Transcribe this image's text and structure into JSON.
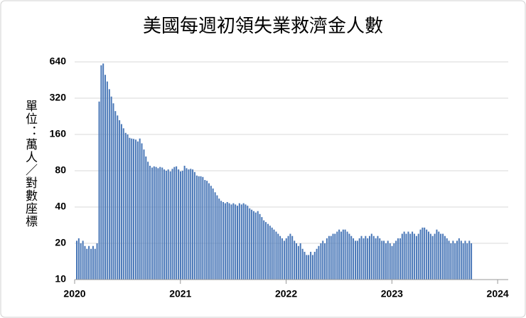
{
  "chart_data": {
    "type": "bar",
    "title": "美國每週初領失業救濟金人數",
    "y_label": "單位：萬人／對數座標",
    "color": "#4a78b8",
    "log_scale": true,
    "grid": true,
    "xlim": [
      2020,
      2024.1
    ],
    "xticks": [
      2020,
      2021,
      2022,
      2023,
      2024
    ],
    "ylim": [
      10,
      640
    ],
    "yticks": [
      10,
      20,
      40,
      80,
      160,
      320,
      640
    ],
    "x": [
      2020.0,
      2020.019,
      2020.038,
      2020.058,
      2020.077,
      2020.096,
      2020.115,
      2020.135,
      2020.154,
      2020.173,
      2020.192,
      2020.212,
      2020.231,
      2020.25,
      2020.269,
      2020.288,
      2020.308,
      2020.327,
      2020.346,
      2020.365,
      2020.385,
      2020.404,
      2020.423,
      2020.442,
      2020.462,
      2020.481,
      2020.5,
      2020.519,
      2020.538,
      2020.558,
      2020.577,
      2020.596,
      2020.615,
      2020.635,
      2020.654,
      2020.673,
      2020.692,
      2020.712,
      2020.731,
      2020.75,
      2020.769,
      2020.788,
      2020.808,
      2020.827,
      2020.846,
      2020.865,
      2020.885,
      2020.904,
      2020.923,
      2020.942,
      2020.962,
      2020.981,
      2021.0,
      2021.019,
      2021.038,
      2021.058,
      2021.077,
      2021.096,
      2021.115,
      2021.135,
      2021.154,
      2021.173,
      2021.192,
      2021.212,
      2021.231,
      2021.25,
      2021.269,
      2021.288,
      2021.308,
      2021.327,
      2021.346,
      2021.365,
      2021.385,
      2021.404,
      2021.423,
      2021.442,
      2021.462,
      2021.481,
      2021.5,
      2021.519,
      2021.538,
      2021.558,
      2021.577,
      2021.596,
      2021.615,
      2021.635,
      2021.654,
      2021.673,
      2021.692,
      2021.712,
      2021.731,
      2021.75,
      2021.769,
      2021.788,
      2021.808,
      2021.827,
      2021.846,
      2021.865,
      2021.885,
      2021.904,
      2021.923,
      2021.942,
      2021.962,
      2021.981,
      2022.0,
      2022.019,
      2022.038,
      2022.058,
      2022.077,
      2022.096,
      2022.115,
      2022.135,
      2022.154,
      2022.173,
      2022.192,
      2022.212,
      2022.231,
      2022.25,
      2022.269,
      2022.288,
      2022.308,
      2022.327,
      2022.346,
      2022.365,
      2022.385,
      2022.404,
      2022.423,
      2022.442,
      2022.462,
      2022.481,
      2022.5,
      2022.519,
      2022.538,
      2022.558,
      2022.577,
      2022.596,
      2022.615,
      2022.635,
      2022.654,
      2022.673,
      2022.692,
      2022.712,
      2022.731,
      2022.75,
      2022.769,
      2022.788,
      2022.808,
      2022.827,
      2022.846,
      2022.865,
      2022.885,
      2022.904,
      2022.923,
      2022.942,
      2022.962,
      2022.981,
      2023.0,
      2023.019,
      2023.038,
      2023.058,
      2023.077,
      2023.096,
      2023.115,
      2023.135,
      2023.154,
      2023.173,
      2023.192,
      2023.212,
      2023.231,
      2023.25,
      2023.269,
      2023.288,
      2023.308,
      2023.327,
      2023.346,
      2023.365,
      2023.385,
      2023.404,
      2023.423,
      2023.442,
      2023.462,
      2023.481,
      2023.5,
      2023.519,
      2023.538,
      2023.558,
      2023.577,
      2023.596,
      2023.615,
      2023.635,
      2023.654,
      2023.673,
      2023.692,
      2023.712,
      2023.731
    ],
    "values": [
      21,
      22,
      20,
      21,
      19,
      18,
      19,
      18,
      19,
      18,
      20,
      300,
      600,
      620,
      500,
      440,
      380,
      330,
      290,
      250,
      230,
      210,
      195,
      180,
      165,
      160,
      150,
      148,
      147,
      145,
      140,
      148,
      135,
      120,
      105,
      95,
      88,
      85,
      87,
      86,
      84,
      86,
      85,
      82,
      80,
      82,
      79,
      83,
      86,
      87,
      82,
      79,
      80,
      88,
      84,
      82,
      83,
      82,
      78,
      73,
      72,
      72,
      71,
      67,
      66,
      63,
      60,
      57,
      53,
      50,
      47,
      45,
      44,
      43,
      44,
      43,
      42,
      43,
      42,
      41,
      43,
      42,
      43,
      42,
      41,
      39,
      38,
      37,
      36,
      37,
      35,
      33,
      31,
      30,
      29,
      28,
      27,
      26,
      25,
      24,
      23,
      22,
      21,
      22,
      23,
      24,
      23,
      21,
      20,
      19,
      20,
      18,
      17,
      16,
      16,
      17,
      16,
      17,
      18,
      19,
      20,
      21,
      20,
      22,
      23,
      23,
      24,
      24,
      25,
      26,
      25,
      26,
      26,
      25,
      24,
      23,
      22,
      21,
      21,
      22,
      23,
      22,
      23,
      22,
      23,
      24,
      23,
      22,
      23,
      22,
      21,
      21,
      20,
      21,
      20,
      19,
      20,
      21,
      22,
      22,
      24,
      25,
      24,
      25,
      24,
      25,
      24,
      23,
      24,
      26,
      27,
      27,
      26,
      25,
      24,
      23,
      24,
      26,
      25,
      24,
      24,
      23,
      22,
      21,
      20,
      21,
      20,
      21,
      22,
      21,
      20,
      21,
      20,
      21,
      20
    ]
  }
}
